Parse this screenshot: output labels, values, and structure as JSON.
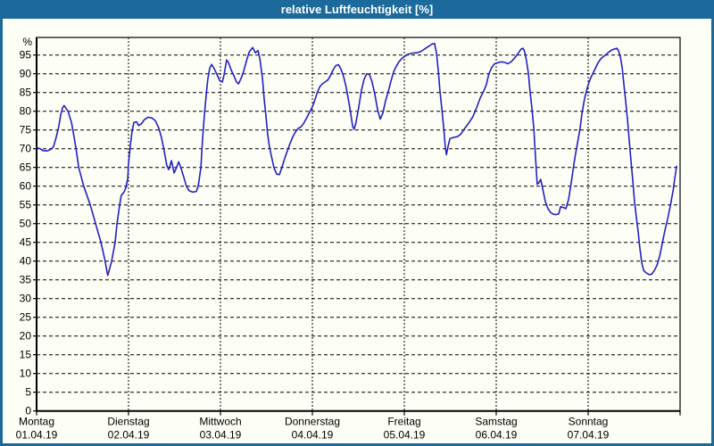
{
  "window": {
    "title": "relative Luftfeuchtigkeit [%]"
  },
  "colors": {
    "titlebar_bg": "#1c699c",
    "window_border": "#1c699c",
    "background": "#fdfef6",
    "grid": "#000000",
    "line": "#2222c0"
  },
  "chart_data": {
    "type": "line",
    "title": "relative Luftfeuchtigkeit [%]",
    "unit_label": "%",
    "grid": "dashed",
    "legend": "none",
    "y_axis": {
      "min": 0,
      "max": 100,
      "tick_min": 0,
      "tick_max": 95,
      "tick_step": 5
    },
    "x_axis": {
      "hours_total": 168,
      "days": [
        {
          "name": "Montag",
          "date": "01.04.19"
        },
        {
          "name": "Dienstag",
          "date": "02.04.19"
        },
        {
          "name": "Mittwoch",
          "date": "03.04.19"
        },
        {
          "name": "Donnerstag",
          "date": "04.04.19"
        },
        {
          "name": "Freitag",
          "date": "05.04.19"
        },
        {
          "name": "Samstag",
          "date": "06.04.19"
        },
        {
          "name": "Sonntag",
          "date": "07.04.19"
        }
      ]
    },
    "series": [
      {
        "name": "relative Luftfeuchtigkeit",
        "color": "#2222c0",
        "points": [
          [
            0.0,
            70.3
          ],
          [
            0.9,
            70.0
          ],
          [
            1.6,
            69.5
          ],
          [
            2.8,
            69.4
          ],
          [
            3.7,
            69.8
          ],
          [
            4.4,
            70.5
          ],
          [
            5.1,
            73.0
          ],
          [
            5.8,
            76.0
          ],
          [
            6.3,
            79.0
          ],
          [
            6.8,
            81.0
          ],
          [
            7.2,
            81.5
          ],
          [
            8.2,
            80.0
          ],
          [
            9.1,
            77.0
          ],
          [
            9.8,
            73.0
          ],
          [
            10.3,
            70.0
          ],
          [
            11.0,
            65.0
          ],
          [
            12.3,
            60.0
          ],
          [
            14.0,
            55.0
          ],
          [
            15.4,
            50.0
          ],
          [
            16.8,
            45.0
          ],
          [
            17.9,
            40.0
          ],
          [
            18.4,
            37.0
          ],
          [
            18.6,
            36.2
          ],
          [
            19.6,
            40.0
          ],
          [
            20.5,
            45.0
          ],
          [
            21.0,
            50.0
          ],
          [
            21.7,
            55.0
          ],
          [
            22.1,
            57.5
          ],
          [
            22.8,
            58.4
          ],
          [
            23.3,
            59.6
          ],
          [
            23.8,
            62.0
          ],
          [
            24.0,
            66.0
          ],
          [
            24.5,
            71.0
          ],
          [
            24.9,
            74.5
          ],
          [
            25.4,
            77.0
          ],
          [
            26.1,
            77.2
          ],
          [
            26.6,
            76.2
          ],
          [
            27.3,
            76.6
          ],
          [
            28.2,
            77.8
          ],
          [
            29.1,
            78.4
          ],
          [
            30.1,
            78.2
          ],
          [
            31.0,
            77.5
          ],
          [
            31.9,
            75.5
          ],
          [
            32.6,
            73.0
          ],
          [
            33.3,
            69.5
          ],
          [
            34.0,
            65.5
          ],
          [
            34.5,
            64.4
          ],
          [
            35.2,
            66.8
          ],
          [
            35.9,
            63.5
          ],
          [
            36.6,
            65.2
          ],
          [
            37.1,
            66.5
          ],
          [
            37.7,
            64.8
          ],
          [
            38.4,
            62.5
          ],
          [
            39.1,
            60.0
          ],
          [
            39.8,
            58.8
          ],
          [
            40.8,
            58.4
          ],
          [
            41.7,
            58.6
          ],
          [
            42.2,
            60.0
          ],
          [
            42.9,
            65.0
          ],
          [
            43.3,
            72.0
          ],
          [
            43.8,
            79.0
          ],
          [
            44.3,
            84.5
          ],
          [
            44.7,
            88.5
          ],
          [
            45.2,
            91.5
          ],
          [
            45.7,
            92.5
          ],
          [
            46.4,
            91.3
          ],
          [
            47.1,
            89.8
          ],
          [
            47.8,
            88.2
          ],
          [
            48.5,
            87.8
          ],
          [
            48.9,
            89.5
          ],
          [
            49.6,
            93.7
          ],
          [
            50.1,
            93.0
          ],
          [
            50.8,
            91.0
          ],
          [
            51.5,
            89.5
          ],
          [
            52.2,
            87.8
          ],
          [
            52.7,
            87.3
          ],
          [
            53.4,
            88.8
          ],
          [
            54.1,
            90.8
          ],
          [
            54.8,
            93.5
          ],
          [
            55.5,
            95.8
          ],
          [
            56.4,
            97.0
          ],
          [
            57.1,
            95.6
          ],
          [
            57.8,
            96.2
          ],
          [
            58.3,
            94.0
          ],
          [
            59.0,
            88.5
          ],
          [
            59.4,
            83.5
          ],
          [
            59.9,
            78.5
          ],
          [
            60.3,
            74.0
          ],
          [
            60.8,
            70.5
          ],
          [
            61.3,
            68.0
          ],
          [
            62.0,
            64.8
          ],
          [
            62.7,
            63.2
          ],
          [
            63.4,
            63.1
          ],
          [
            64.1,
            65.2
          ],
          [
            64.8,
            67.5
          ],
          [
            65.5,
            69.5
          ],
          [
            66.2,
            71.5
          ],
          [
            66.9,
            73.2
          ],
          [
            67.6,
            74.5
          ],
          [
            68.3,
            75.4
          ],
          [
            69.0,
            75.8
          ],
          [
            69.7,
            76.7
          ],
          [
            70.4,
            78.0
          ],
          [
            71.1,
            79.4
          ],
          [
            71.8,
            80.7
          ],
          [
            72.5,
            82.5
          ],
          [
            73.2,
            84.8
          ],
          [
            73.9,
            86.5
          ],
          [
            74.6,
            87.3
          ],
          [
            75.3,
            87.8
          ],
          [
            76.0,
            88.3
          ],
          [
            76.7,
            89.5
          ],
          [
            77.4,
            91.0
          ],
          [
            78.1,
            92.2
          ],
          [
            78.8,
            92.4
          ],
          [
            79.4,
            91.4
          ],
          [
            80.1,
            89.4
          ],
          [
            80.8,
            86.5
          ],
          [
            81.5,
            82.5
          ],
          [
            82.0,
            79.5
          ],
          [
            82.5,
            76.0
          ],
          [
            82.9,
            75.2
          ],
          [
            83.4,
            77.0
          ],
          [
            84.1,
            81.0
          ],
          [
            84.8,
            85.5
          ],
          [
            85.5,
            88.5
          ],
          [
            86.2,
            90.0
          ],
          [
            86.9,
            89.8
          ],
          [
            87.6,
            87.8
          ],
          [
            88.3,
            84.5
          ],
          [
            89.0,
            80.5
          ],
          [
            89.7,
            77.9
          ],
          [
            90.4,
            79.5
          ],
          [
            91.1,
            82.8
          ],
          [
            91.8,
            85.2
          ],
          [
            92.5,
            88.0
          ],
          [
            93.2,
            90.5
          ],
          [
            93.9,
            92.0
          ],
          [
            94.6,
            93.2
          ],
          [
            95.3,
            94.0
          ],
          [
            96.0,
            94.6
          ],
          [
            96.9,
            95.2
          ],
          [
            98.1,
            95.5
          ],
          [
            99.3,
            95.6
          ],
          [
            100.4,
            96.0
          ],
          [
            101.6,
            96.8
          ],
          [
            102.5,
            97.4
          ],
          [
            103.2,
            97.9
          ],
          [
            103.9,
            98.1
          ],
          [
            104.4,
            95.5
          ],
          [
            104.9,
            90.5
          ],
          [
            105.3,
            85.5
          ],
          [
            105.8,
            80.5
          ],
          [
            106.3,
            75.5
          ],
          [
            106.7,
            70.5
          ],
          [
            107.0,
            68.4
          ],
          [
            107.4,
            70.5
          ],
          [
            107.9,
            72.7
          ],
          [
            108.8,
            73.0
          ],
          [
            109.8,
            73.2
          ],
          [
            110.7,
            73.8
          ],
          [
            111.6,
            75.2
          ],
          [
            112.8,
            76.8
          ],
          [
            113.9,
            78.5
          ],
          [
            114.9,
            81.0
          ],
          [
            115.8,
            83.5
          ],
          [
            116.7,
            85.3
          ],
          [
            117.4,
            87.0
          ],
          [
            118.1,
            90.0
          ],
          [
            118.8,
            91.7
          ],
          [
            119.5,
            92.6
          ],
          [
            120.5,
            93.0
          ],
          [
            121.4,
            93.2
          ],
          [
            122.3,
            93.0
          ],
          [
            123.0,
            92.7
          ],
          [
            123.9,
            93.2
          ],
          [
            124.9,
            94.3
          ],
          [
            125.8,
            95.6
          ],
          [
            126.5,
            96.6
          ],
          [
            127.0,
            96.8
          ],
          [
            127.4,
            96.0
          ],
          [
            127.9,
            93.5
          ],
          [
            128.4,
            90.0
          ],
          [
            128.8,
            85.5
          ],
          [
            129.3,
            81.0
          ],
          [
            129.8,
            75.5
          ],
          [
            130.2,
            68.5
          ],
          [
            130.7,
            60.5
          ],
          [
            131.2,
            61.0
          ],
          [
            131.6,
            61.8
          ],
          [
            132.1,
            59.5
          ],
          [
            132.8,
            56.0
          ],
          [
            133.5,
            54.0
          ],
          [
            134.2,
            53.0
          ],
          [
            134.9,
            52.5
          ],
          [
            135.6,
            52.4
          ],
          [
            136.3,
            52.6
          ],
          [
            136.8,
            54.5
          ],
          [
            137.5,
            54.3
          ],
          [
            138.2,
            54.0
          ],
          [
            138.9,
            56.5
          ],
          [
            139.3,
            59.0
          ],
          [
            139.8,
            62.5
          ],
          [
            140.3,
            66.0
          ],
          [
            140.7,
            68.5
          ],
          [
            141.4,
            72.5
          ],
          [
            141.9,
            75.5
          ],
          [
            142.4,
            79.5
          ],
          [
            143.1,
            83.5
          ],
          [
            143.8,
            86.3
          ],
          [
            144.5,
            88.5
          ],
          [
            145.2,
            90.0
          ],
          [
            145.9,
            91.5
          ],
          [
            146.6,
            93.0
          ],
          [
            147.3,
            94.0
          ],
          [
            148.0,
            94.6
          ],
          [
            148.7,
            95.2
          ],
          [
            149.4,
            95.8
          ],
          [
            150.1,
            96.3
          ],
          [
            150.8,
            96.6
          ],
          [
            151.5,
            96.8
          ],
          [
            151.9,
            96.2
          ],
          [
            152.4,
            94.5
          ],
          [
            152.9,
            91.5
          ],
          [
            153.3,
            87.5
          ],
          [
            153.8,
            82.5
          ],
          [
            154.3,
            77.5
          ],
          [
            154.7,
            72.5
          ],
          [
            155.2,
            66.5
          ],
          [
            155.7,
            61.0
          ],
          [
            156.1,
            56.0
          ],
          [
            156.6,
            51.5
          ],
          [
            157.1,
            47.5
          ],
          [
            157.5,
            43.5
          ],
          [
            158.0,
            39.5
          ],
          [
            158.5,
            37.5
          ],
          [
            159.2,
            36.8
          ],
          [
            159.9,
            36.4
          ],
          [
            160.6,
            36.5
          ],
          [
            161.3,
            37.5
          ],
          [
            162.0,
            39.0
          ],
          [
            162.7,
            41.5
          ],
          [
            163.4,
            45.0
          ],
          [
            164.1,
            48.5
          ],
          [
            164.8,
            51.5
          ],
          [
            165.5,
            55.0
          ],
          [
            166.2,
            59.0
          ],
          [
            166.6,
            62.0
          ],
          [
            167.1,
            65.3
          ]
        ]
      }
    ]
  }
}
